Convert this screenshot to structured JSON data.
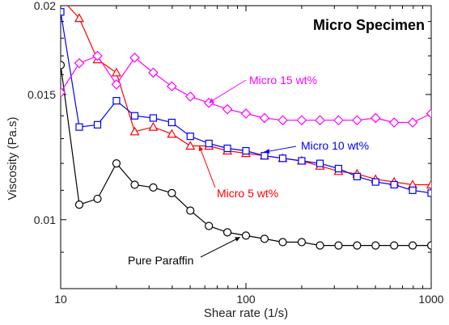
{
  "chart_data": {
    "type": "line",
    "title": "Micro Specimen",
    "xlabel": "Shear rate (1/s)",
    "ylabel": "Viscosity (Pa.s)",
    "x_scale": "log",
    "y_scale": "log",
    "xlim": [
      10,
      1000
    ],
    "ylim": [
      0.008,
      0.02
    ],
    "x_ticks": [
      10,
      100,
      1000
    ],
    "x_tick_labels": [
      "10",
      "100",
      "1000"
    ],
    "y_ticks": [
      0.01,
      0.015,
      0.02
    ],
    "y_tick_labels": [
      "0.01",
      "0.015",
      "0.02"
    ],
    "grid": false,
    "series": [
      {
        "name": "Pure Paraffin",
        "color": "#000000",
        "marker": "circle",
        "x": [
          10,
          12.6,
          15.8,
          20,
          25.1,
          31.6,
          39.8,
          50.1,
          63.1,
          79.4,
          100,
          126,
          158,
          200,
          251,
          316,
          398,
          501,
          631,
          794,
          1000
        ],
        "y": [
          0.0165,
          0.0105,
          0.0107,
          0.012,
          0.0112,
          0.0111,
          0.0109,
          0.0103,
          0.0098,
          0.0096,
          0.0095,
          0.0094,
          0.0093,
          0.0093,
          0.0092,
          0.0092,
          0.0092,
          0.0092,
          0.0092,
          0.0092,
          0.0092
        ]
      },
      {
        "name": "Micro 5 wt%",
        "color": "#ff0000",
        "marker": "triangle",
        "x": [
          10,
          12.6,
          15.8,
          20,
          25.1,
          31.6,
          39.8,
          50.1,
          63.1,
          79.4,
          100,
          126,
          158,
          200,
          251,
          316,
          398,
          501,
          631,
          794,
          1000
        ],
        "y": [
          0.0205,
          0.0192,
          0.0168,
          0.0161,
          0.0133,
          0.0135,
          0.0132,
          0.0127,
          0.0127,
          0.0125,
          0.0124,
          0.0123,
          0.0122,
          0.0121,
          0.0119,
          0.0117,
          0.0116,
          0.0114,
          0.0113,
          0.0112,
          0.0112
        ]
      },
      {
        "name": "Micro 10 wt%",
        "color": "#0000ff",
        "marker": "square",
        "x": [
          10,
          12.6,
          15.8,
          20,
          25.1,
          31.6,
          39.8,
          50.1,
          63.1,
          79.4,
          100,
          126,
          158,
          200,
          251,
          316,
          398,
          501,
          631,
          794,
          1000
        ],
        "y": [
          0.0196,
          0.0135,
          0.0136,
          0.0147,
          0.014,
          0.0139,
          0.0137,
          0.0131,
          0.0128,
          0.0126,
          0.0125,
          0.0123,
          0.0122,
          0.0121,
          0.012,
          0.0118,
          0.0115,
          0.0113,
          0.0112,
          0.011,
          0.0109
        ]
      },
      {
        "name": "Micro 15 wt%",
        "color": "#ff00ff",
        "marker": "diamond",
        "x": [
          10,
          12.6,
          15.8,
          20,
          25.1,
          31.6,
          39.8,
          50.1,
          63.1,
          79.4,
          100,
          126,
          158,
          200,
          251,
          316,
          398,
          501,
          631,
          794,
          1000
        ],
        "y": [
          0.0151,
          0.0166,
          0.017,
          0.0155,
          0.0169,
          0.0161,
          0.0154,
          0.0149,
          0.0146,
          0.0143,
          0.0141,
          0.0139,
          0.0138,
          0.0138,
          0.0138,
          0.0138,
          0.0138,
          0.0139,
          0.0137,
          0.0137,
          0.0141
        ]
      }
    ],
    "annotations": [
      {
        "text": "Micro 15 wt%",
        "color": "#ff00ff",
        "series": "Micro 15 wt%",
        "point_x": 63.1,
        "point_y": 0.0146
      },
      {
        "text": "Micro 10 wt%",
        "color": "#0000ff",
        "series": "Micro 10 wt%",
        "point_x": 126,
        "point_y": 0.01245
      },
      {
        "text": "Micro 5 wt%",
        "color": "#ff0000",
        "series": "Micro 5 wt%",
        "point_x": 56,
        "point_y": 0.0127
      },
      {
        "text": "Pure Paraffin",
        "color": "#000000",
        "series": "Pure Paraffin",
        "point_x": 93,
        "point_y": 0.00945
      }
    ]
  }
}
